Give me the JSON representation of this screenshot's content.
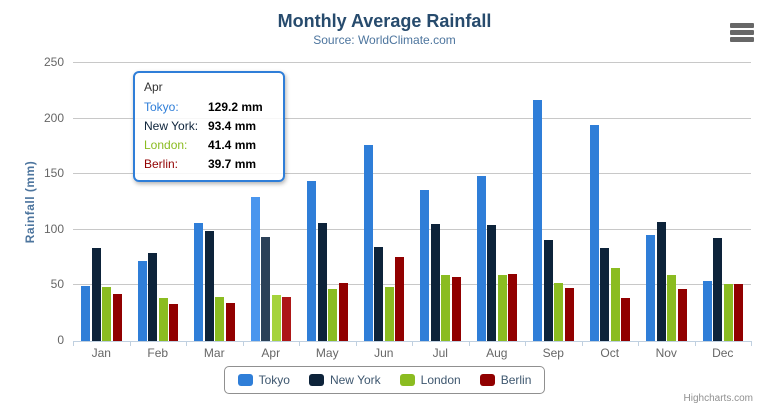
{
  "header": {
    "title": "Monthly Average Rainfall",
    "subtitle": "Source: WorldClimate.com"
  },
  "credits": {
    "label": "Highcharts.com"
  },
  "colors": {
    "title": "#274b6d",
    "subtitle": "#4d759e",
    "axis_label": "#666666",
    "gridline": "#c8c8c8",
    "axis_line": "#c0d0e0",
    "legend_border": "#909090",
    "tooltip_border": "#2f7ed8"
  },
  "chart_data": {
    "type": "bar",
    "title": "Monthly Average Rainfall",
    "subtitle": "Source: WorldClimate.com",
    "xlabel": "",
    "ylabel": "Rainfall (mm)",
    "ylim": [
      0,
      250
    ],
    "ytick_step": 50,
    "grid": true,
    "legend_position": "bottom",
    "hovered_category": "Apr",
    "categories": [
      "Jan",
      "Feb",
      "Mar",
      "Apr",
      "May",
      "Jun",
      "Jul",
      "Aug",
      "Sep",
      "Oct",
      "Nov",
      "Dec"
    ],
    "series": [
      {
        "name": "Tokyo",
        "color": "#2f7ed8",
        "hover_color": "#4a96ee",
        "values": [
          49.9,
          71.5,
          106.4,
          129.2,
          144.0,
          176.0,
          135.6,
          148.5,
          216.4,
          194.1,
          95.6,
          54.4
        ]
      },
      {
        "name": "New York",
        "color": "#0d233a",
        "hover_color": "#2b4158",
        "values": [
          83.6,
          78.8,
          98.5,
          93.4,
          106.0,
          84.5,
          105.0,
          104.3,
          91.2,
          83.5,
          106.6,
          92.3
        ]
      },
      {
        "name": "London",
        "color": "#8bbc21",
        "hover_color": "#a5d33c",
        "values": [
          48.9,
          38.8,
          39.3,
          41.4,
          47.0,
          48.3,
          59.0,
          59.6,
          52.4,
          65.2,
          59.3,
          51.2
        ]
      },
      {
        "name": "Berlin",
        "color": "#910000",
        "hover_color": "#ad1717",
        "values": [
          42.4,
          33.2,
          34.5,
          39.7,
          52.6,
          75.5,
          57.4,
          60.4,
          47.6,
          39.1,
          46.8,
          51.1
        ]
      }
    ]
  },
  "tooltip": {
    "header": "Apr",
    "rows": [
      {
        "name": "Tokyo:",
        "value": "129.2 mm"
      },
      {
        "name": "New York:",
        "value": "93.4 mm"
      },
      {
        "name": "London:",
        "value": "41.4 mm"
      },
      {
        "name": "Berlin:",
        "value": "39.7 mm"
      }
    ]
  }
}
